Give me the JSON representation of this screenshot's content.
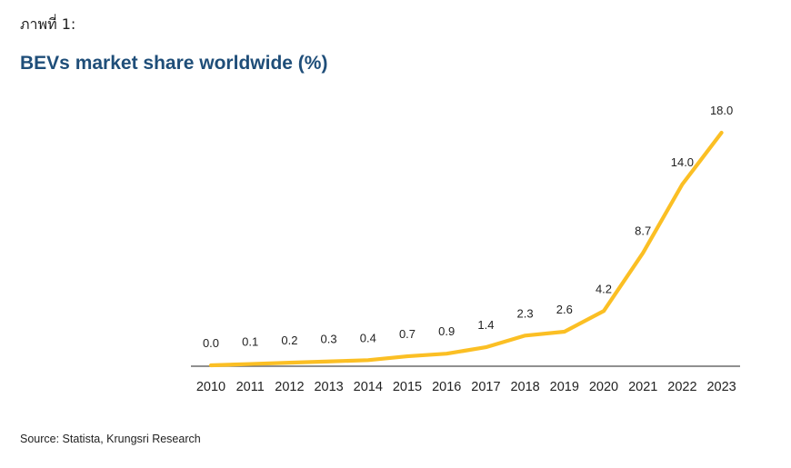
{
  "header": {
    "figure_label": "ภาพที่ 1:",
    "title": "BEVs market share worldwide (%)"
  },
  "footer": {
    "source": "Source: Statista, Krungsri Research"
  },
  "chart_data": {
    "type": "line",
    "title": "BEVs market share worldwide (%)",
    "xlabel": "",
    "ylabel": "",
    "x": [
      "2010",
      "2011",
      "2012",
      "2013",
      "2014",
      "2015",
      "2016",
      "2017",
      "2018",
      "2019",
      "2020",
      "2021",
      "2022",
      "2023"
    ],
    "series": [
      {
        "values": [
          0.0,
          0.1,
          0.2,
          0.3,
          0.4,
          0.7,
          0.9,
          1.4,
          2.3,
          2.6,
          4.2,
          8.7,
          14.0,
          18.0
        ],
        "labels": [
          "0.0",
          "0.1",
          "0.2",
          "0.3",
          "0.4",
          "0.7",
          "0.9",
          "1.4",
          "2.3",
          "2.6",
          "4.2",
          "8.7",
          "14.0",
          "18.0"
        ],
        "color": "#fbbf24"
      }
    ],
    "ylim": [
      0,
      18
    ],
    "grid": false,
    "legend": "none",
    "axis_color": "#6b6b6b"
  }
}
